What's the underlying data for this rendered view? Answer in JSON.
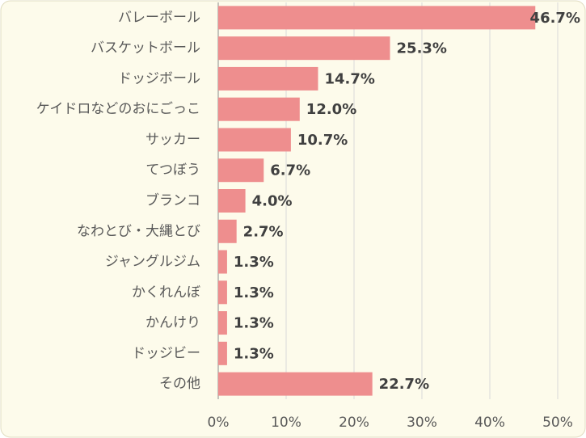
{
  "chart_data": {
    "type": "hbar",
    "categories": [
      "バレーボール",
      "バスケットボール",
      "ドッジボール",
      "ケイドロなどのおにごっこ",
      "サッカー",
      "てつぼう",
      "ブランコ",
      "なわとび・大縄とび",
      "ジャングルジム",
      "かくれんぼ",
      "かんけり",
      "ドッジビー",
      "その他"
    ],
    "values": [
      46.7,
      25.3,
      14.7,
      12.0,
      10.7,
      6.7,
      4.0,
      2.7,
      1.3,
      1.3,
      1.3,
      1.3,
      22.7
    ],
    "value_labels": [
      "46.7%",
      "25.3%",
      "14.7%",
      "12.0%",
      "10.7%",
      "6.7%",
      "4.0%",
      "2.7%",
      "1.3%",
      "1.3%",
      "1.3%",
      "1.3%",
      "22.7%"
    ],
    "color": "#ee8e8e",
    "xlim": [
      0,
      50
    ],
    "xticks": [
      {
        "value": 0,
        "label": "0%"
      },
      {
        "value": 10,
        "label": "10%"
      },
      {
        "value": 20,
        "label": "20%"
      },
      {
        "value": 30,
        "label": "30%"
      },
      {
        "value": 40,
        "label": "40%"
      },
      {
        "value": 50,
        "label": "50%"
      }
    ],
    "grid": true
  }
}
